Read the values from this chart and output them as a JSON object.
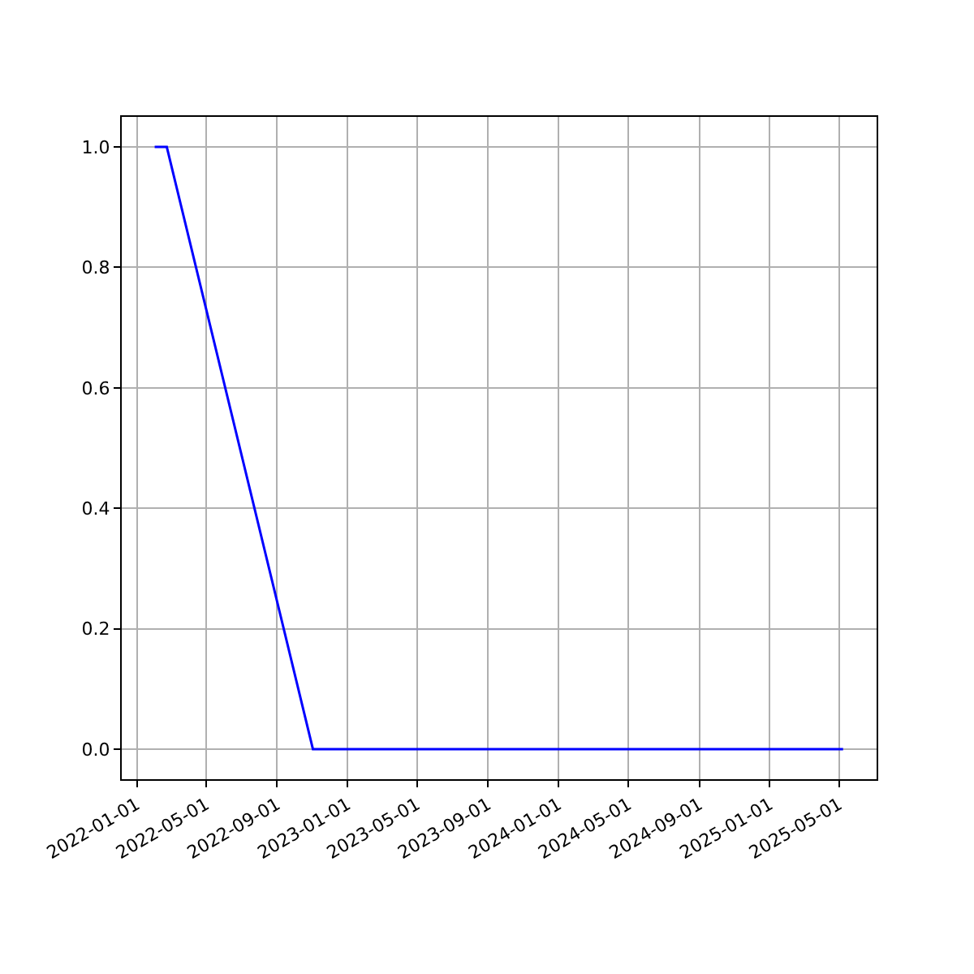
{
  "chart_data": {
    "type": "line",
    "x": [
      "2022-02-01",
      "2022-02-22",
      "2022-11-02",
      "2025-05-08"
    ],
    "series": [
      {
        "color": "#0000ff",
        "values": [
          1,
          1,
          0,
          0
        ]
      }
    ],
    "xlim": [
      "2021-12-06",
      "2025-07-05"
    ],
    "xticks": [
      "2022-01-01",
      "2022-05-01",
      "2022-09-01",
      "2023-01-01",
      "2023-05-01",
      "2023-09-01",
      "2024-01-01",
      "2024-05-01",
      "2024-09-01",
      "2025-01-01",
      "2025-05-01"
    ],
    "ylim": [
      -0.05,
      1.05
    ],
    "yticks": [
      {
        "value": 0,
        "label": "0.0"
      },
      {
        "value": 0.2,
        "label": "0.2"
      },
      {
        "value": 0.4,
        "label": "0.4"
      },
      {
        "value": 0.6,
        "label": "0.6"
      },
      {
        "value": 0.8,
        "label": "0.8"
      },
      {
        "value": 1,
        "label": "1.0"
      }
    ],
    "grid": true,
    "marker": "none",
    "line_style": "solid"
  }
}
